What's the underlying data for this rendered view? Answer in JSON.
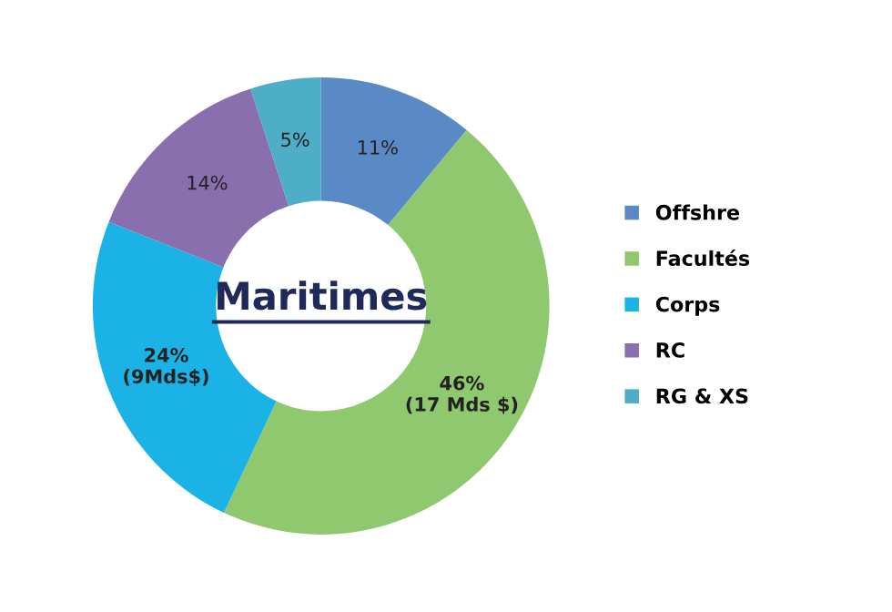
{
  "chart_data": {
    "type": "donut",
    "title": "Maritimes",
    "categories": [
      "Offshre",
      "Facultés",
      "Corps",
      "RC",
      "RG & XS"
    ],
    "values": [
      11,
      46,
      24,
      14,
      5
    ],
    "colors": [
      "#5a8ac6",
      "#8fc86e",
      "#1bb3e6",
      "#8a6fae",
      "#4eaec8"
    ],
    "value_labels": [
      "11%",
      "46%\n(17 Mds $)",
      "24%\n(9Mds$)",
      "14%",
      "5%"
    ],
    "legend": "right"
  }
}
